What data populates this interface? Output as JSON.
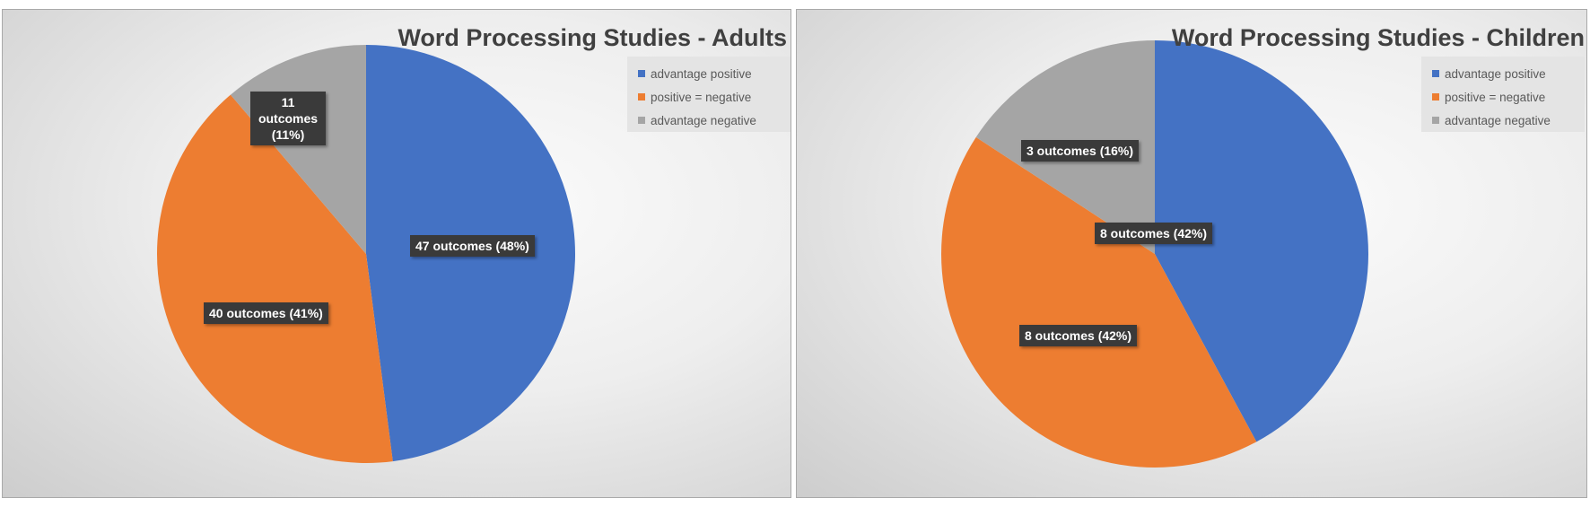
{
  "chart_data": [
    {
      "type": "pie",
      "title": "Word Processing Studies - Adults",
      "categories": [
        "advantage positive",
        "positive = negative",
        "advantage negative"
      ],
      "values": [
        47,
        40,
        11
      ],
      "percent": [
        48,
        41,
        11
      ],
      "data_labels": [
        "47 outcomes (48%)",
        "40 outcomes (41%)",
        "11 outcomes (11%)"
      ],
      "colors": [
        "#4472c4",
        "#ed7d31",
        "#a5a5a5"
      ],
      "legend_position": "top-right"
    },
    {
      "type": "pie",
      "title": "Word Processing Studies - Children",
      "categories": [
        "advantage positive",
        "positive = negative",
        "advantage negative"
      ],
      "values": [
        8,
        8,
        3
      ],
      "percent": [
        42,
        42,
        16
      ],
      "data_labels": [
        "8 outcomes (42%)",
        "8 outcomes (42%)",
        "3 outcomes (16%)"
      ],
      "colors": [
        "#4472c4",
        "#ed7d31",
        "#a5a5a5"
      ],
      "legend_position": "top-right"
    }
  ]
}
